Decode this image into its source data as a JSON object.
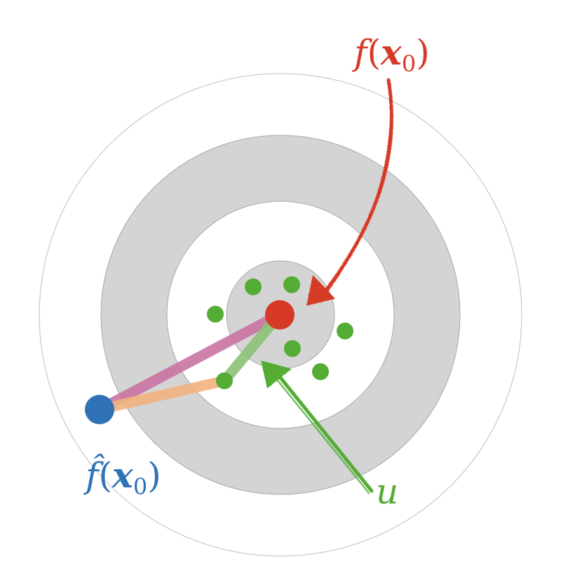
{
  "labels": {
    "f_name": "f",
    "f_arg_open": "(",
    "f_arg_var": "x",
    "f_arg_sub": "0",
    "f_arg_close": ")",
    "fhat_name": "f̂",
    "fhat_arg_open": "(",
    "fhat_arg_var": "x",
    "fhat_arg_sub": "0",
    "fhat_arg_close": ")",
    "u": "u"
  },
  "colors": {
    "target": "#d63a26",
    "estimate": "#2f72b8",
    "samples": "#55ac34",
    "sample_link": "#8cc275",
    "bias_link": "#c974a2",
    "variance_link": "#f1b37e",
    "ring_fill": "#d4d4d4",
    "ring_stroke": "#a8a8a8",
    "outer_stroke": "#c8c8c8"
  },
  "icons": {
    "f_arrow": "curved-arrow-icon",
    "u_arrow": "straight-arrow-icon"
  }
}
